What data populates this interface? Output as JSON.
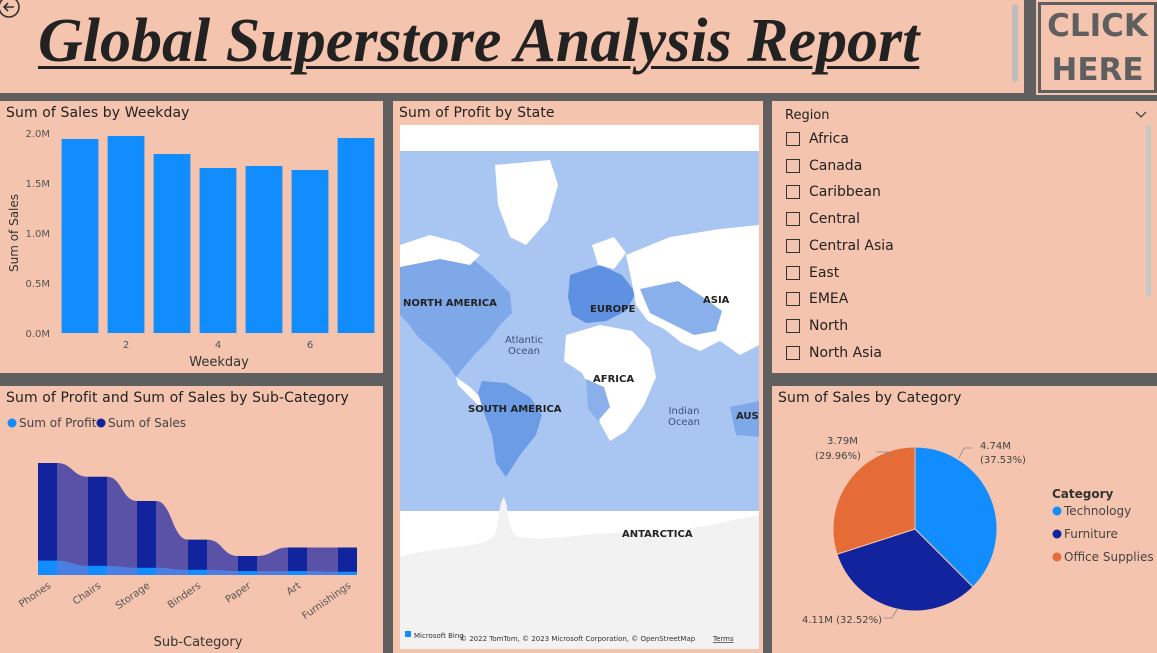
{
  "report": {
    "title": "Global Superstore Analysis Report",
    "click_button": "CLICK\nHERE"
  },
  "weekday_chart": {
    "title": "Sum of Sales by Weekday",
    "xlabel": "Weekday",
    "ylabel": "Sum of Sales",
    "y_ticks": [
      "0.0M",
      "0.5M",
      "1.0M",
      "1.5M",
      "2.0M"
    ],
    "x_ticks": [
      "2",
      "4",
      "6"
    ]
  },
  "subcat_chart": {
    "title": "Sum of Profit and Sum of Sales by Sub-Category",
    "xlabel": "Sub-Category",
    "legend": [
      "Sum of Profit",
      "Sum of Sales"
    ],
    "x_ticks": [
      "Phones",
      "Chairs",
      "Storage",
      "Binders",
      "Paper",
      "Art",
      "Furnishings"
    ]
  },
  "map": {
    "title": "Sum of Profit by State",
    "labels": {
      "north_america": "NORTH AMERICA",
      "europe": "EUROPE",
      "asia": "ASIA",
      "atlantic": "Atlantic",
      "ocean1": "Ocean",
      "africa": "AFRICA",
      "south_america": "SOUTH AMERICA",
      "indian": "Indian",
      "ocean2": "Ocean",
      "aust": "AUST",
      "antarctica": "ANTARCTICA"
    },
    "attribution_brand": "Microsoft Bing",
    "attribution": "© 2022 TomTom, © 2023 Microsoft Corporation, © OpenStreetMap",
    "terms": "Terms"
  },
  "slicer": {
    "title": "Region",
    "items": [
      "Africa",
      "Canada",
      "Caribbean",
      "Central",
      "Central Asia",
      "East",
      "EMEA",
      "North",
      "North Asia"
    ]
  },
  "pie_chart": {
    "title": "Sum of Sales by Category",
    "legend_title": "Category",
    "legend": [
      "Technology",
      "Furniture",
      "Office Supplies"
    ],
    "labels": {
      "tech_value": "4.74M",
      "tech_pct": "(37.53%)",
      "furn": "4.11M (32.52%)",
      "office_value": "3.79M",
      "office_pct": "(29.96%)"
    }
  },
  "colors": {
    "panel_bg": "#f5c4ae",
    "background": "#5f5f5f",
    "bar": "#118dff",
    "sales_dark": "#12239e",
    "office_supplies": "#e66c37",
    "map_water": "#a9c6f2"
  },
  "chart_data": [
    {
      "type": "bar",
      "title": "Sum of Sales by Weekday",
      "xlabel": "Weekday",
      "ylabel": "Sum of Sales",
      "categories": [
        1,
        2,
        3,
        4,
        5,
        6,
        7
      ],
      "values": [
        1.94,
        1.97,
        1.79,
        1.65,
        1.67,
        1.63,
        1.95
      ],
      "unit": "M",
      "ylim": [
        0,
        2.0
      ]
    },
    {
      "type": "area",
      "title": "Sum of Profit and Sum of Sales by Sub-Category",
      "xlabel": "Sub-Category",
      "categories": [
        "Phones",
        "Chairs",
        "Storage",
        "Binders",
        "Paper",
        "Art",
        "Furnishings"
      ],
      "series": [
        {
          "name": "Sum of Sales",
          "values": [
            1.71,
            1.5,
            1.13,
            0.54,
            0.29,
            0.42,
            0.42
          ]
        },
        {
          "name": "Sum of Profit",
          "values": [
            0.22,
            0.14,
            0.11,
            0.08,
            0.06,
            0.06,
            0.05
          ]
        }
      ],
      "unit": "M"
    },
    {
      "type": "pie",
      "title": "Sum of Sales by Category",
      "categories": [
        "Technology",
        "Furniture",
        "Office Supplies"
      ],
      "values": [
        4.74,
        4.11,
        3.79
      ],
      "percents": [
        37.53,
        32.52,
        29.96
      ],
      "unit": "M"
    }
  ]
}
